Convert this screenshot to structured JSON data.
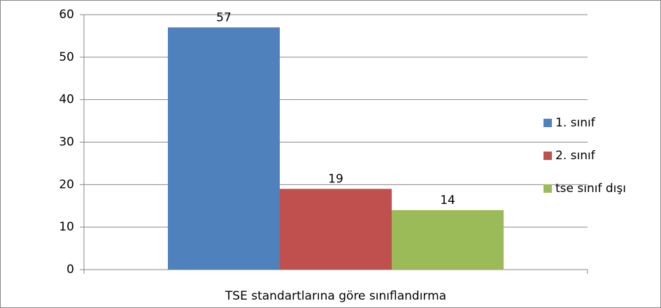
{
  "chart_data": {
    "type": "bar",
    "categories": [
      "TSE standartlarına göre sınıflandırma"
    ],
    "series": [
      {
        "name": "1. sınıf",
        "color": "#4f81bd",
        "values": [
          57
        ]
      },
      {
        "name": "2. sınıf",
        "color": "#c0504d",
        "values": [
          19
        ]
      },
      {
        "name": "tse sınıf dışı",
        "color": "#9bbb59",
        "values": [
          14
        ]
      }
    ],
    "ylim": [
      0,
      60
    ],
    "yticks": [
      0,
      10,
      20,
      30,
      40,
      50,
      60
    ],
    "grid": true,
    "legend": "right"
  }
}
